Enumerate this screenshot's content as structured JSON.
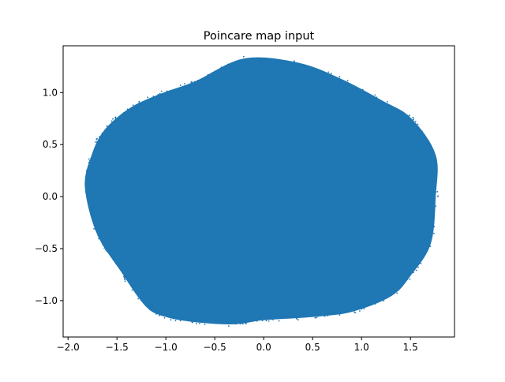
{
  "chart_data": {
    "type": "scatter",
    "title": "Poincare map input",
    "xlabel": "",
    "ylabel": "",
    "xlim": [
      -2.05,
      1.95
    ],
    "ylim": [
      -1.35,
      1.45
    ],
    "x_ticks": [
      -2.0,
      -1.5,
      -1.0,
      -0.5,
      0.0,
      0.5,
      1.0,
      1.5
    ],
    "x_tick_labels": [
      "−2.0",
      "−1.5",
      "−1.0",
      "−0.5",
      "0.0",
      "0.5",
      "1.0",
      "1.5"
    ],
    "y_ticks": [
      -1.0,
      -0.5,
      0.0,
      0.5,
      1.0
    ],
    "y_tick_labels": [
      "−1.0",
      "−0.5",
      "0.0",
      "0.5",
      "1.0"
    ],
    "grid": false,
    "legend": "none",
    "marker_color": "#1f77b4",
    "point_cloud_boundary": {
      "x": [
        -0.2,
        0.35,
        0.8,
        1.2,
        1.5,
        1.75,
        1.75,
        1.7,
        1.5,
        1.3,
        0.9,
        0.5,
        0.0,
        -0.3,
        -0.7,
        -1.0,
        -1.2,
        -1.45,
        -1.7,
        -1.82,
        -1.75,
        -1.65,
        -1.5,
        -1.3,
        -1.0,
        -0.7
      ],
      "y": [
        1.32,
        1.28,
        1.12,
        0.92,
        0.75,
        0.4,
        0.0,
        -0.45,
        -0.75,
        -0.95,
        -1.1,
        -1.15,
        -1.18,
        -1.22,
        -1.2,
        -1.15,
        -1.05,
        -0.72,
        -0.35,
        0.1,
        0.4,
        0.6,
        0.75,
        0.88,
        1.0,
        1.1
      ]
    }
  }
}
